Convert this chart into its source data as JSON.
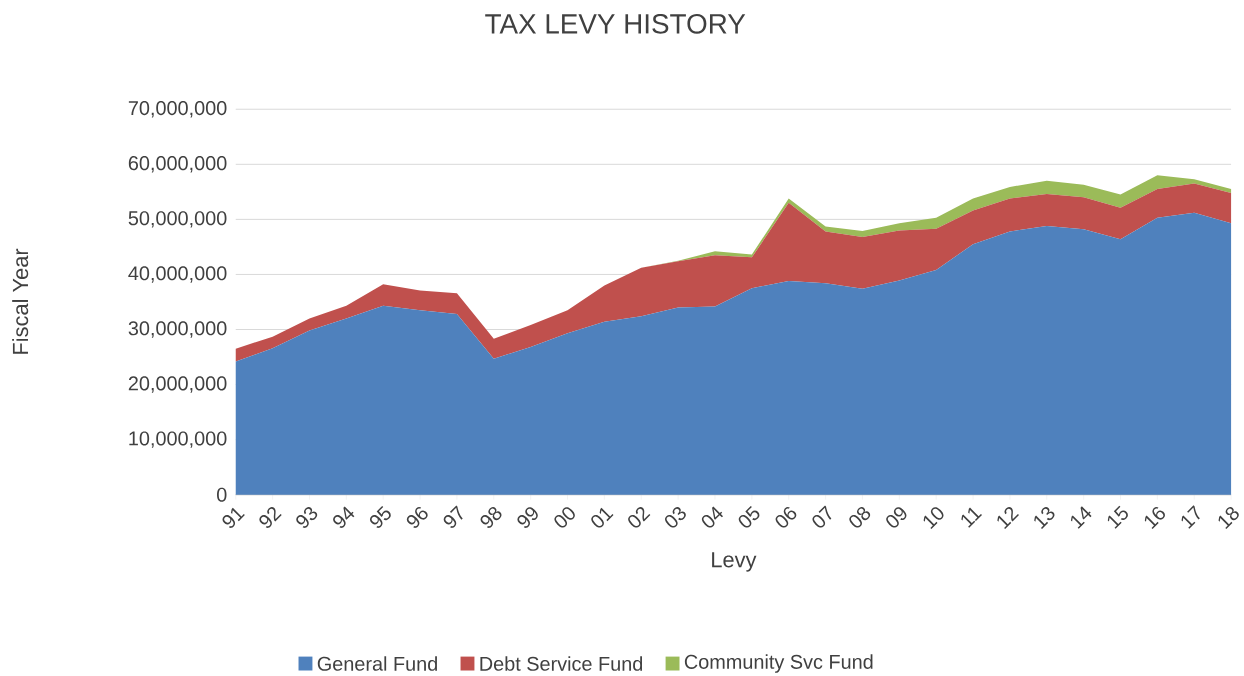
{
  "chart_data": {
    "type": "area",
    "title": "TAX LEVY HISTORY",
    "xlabel": "Levy",
    "ylabel": "Fiscal Year",
    "categories": [
      "91",
      "92",
      "93",
      "94",
      "95",
      "96",
      "97",
      "98",
      "99",
      "00",
      "01",
      "02",
      "03",
      "04",
      "05",
      "06",
      "07",
      "08",
      "09",
      "10",
      "11",
      "12",
      "13",
      "14",
      "15",
      "16",
      "17",
      "18"
    ],
    "stacked": true,
    "series": [
      {
        "name": "General Fund",
        "color": "#4f81bd",
        "values": [
          24200000,
          26600000,
          29800000,
          32000000,
          34300000,
          33500000,
          32800000,
          24700000,
          26800000,
          29300000,
          31400000,
          32400000,
          34000000,
          34200000,
          37500000,
          38800000,
          38400000,
          37400000,
          38900000,
          40800000,
          45500000,
          47800000,
          48800000,
          48200000,
          46400000,
          50300000,
          51200000,
          49300000
        ]
      },
      {
        "name": "Debt Service Fund",
        "color": "#c0504d",
        "values": [
          2300000,
          2100000,
          2200000,
          2300000,
          3900000,
          3600000,
          3800000,
          3600000,
          4000000,
          4200000,
          6600000,
          8800000,
          8400000,
          9300000,
          5600000,
          14200000,
          9400000,
          9400000,
          9100000,
          7500000,
          6100000,
          6000000,
          5800000,
          5800000,
          5700000,
          5200000,
          5300000,
          5500000
        ]
      },
      {
        "name": "Community Svc Fund",
        "color": "#9bbb59",
        "values": [
          0,
          0,
          0,
          0,
          0,
          0,
          0,
          0,
          0,
          0,
          0,
          0,
          100000,
          700000,
          500000,
          800000,
          900000,
          1100000,
          1300000,
          2000000,
          2200000,
          2100000,
          2400000,
          2300000,
          2400000,
          2500000,
          800000,
          700000
        ]
      }
    ],
    "ylim": [
      0,
      70000000
    ],
    "yticks": [
      0,
      {
        "value": 10000000,
        "label": "10,000,000"
      },
      {
        "value": 20000000,
        "label": "20,000,000"
      },
      {
        "value": 30000000,
        "label": "30,000,000"
      },
      {
        "value": 40000000,
        "label": "40,000,000"
      },
      {
        "value": 50000000,
        "label": "50,000,000"
      },
      {
        "value": 60000000,
        "label": "60,000,000"
      },
      {
        "value": 70000000,
        "label": "70,000,000"
      }
    ],
    "grid": "y",
    "legend": "bottom"
  }
}
